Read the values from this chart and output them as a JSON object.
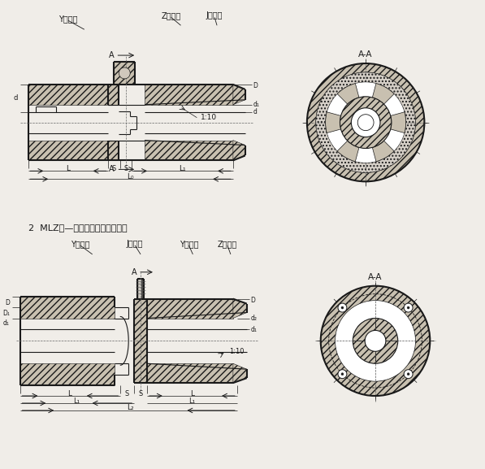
{
  "bg_color": "#f0ede8",
  "line_color": "#1a1a1a",
  "label_top_y": "Y型轴孔",
  "label_top_z": "Z型轴孔",
  "label_top_j": "J型轴孔",
  "label_aa": "A-A",
  "label_A": "A",
  "label_1_10": "1:10",
  "section2_title": "2  MLZ型—单法兰梅花弹性联轴器",
  "label_bot_y": "Y型轴孔",
  "label_bot_j": "J型轴孔",
  "label_bot_y2": "Y型轴孔",
  "label_bot_z": "Z型轴孔",
  "dim_L": "L",
  "dim_S": "S",
  "dim_L1": "L₁",
  "dim_L0": "L₀",
  "dim_L2": "L₂",
  "dim_d": "d",
  "dim_d1": "d₁",
  "dim_d2": "d₂",
  "dim_D": "D",
  "dim_D1": "D₁"
}
